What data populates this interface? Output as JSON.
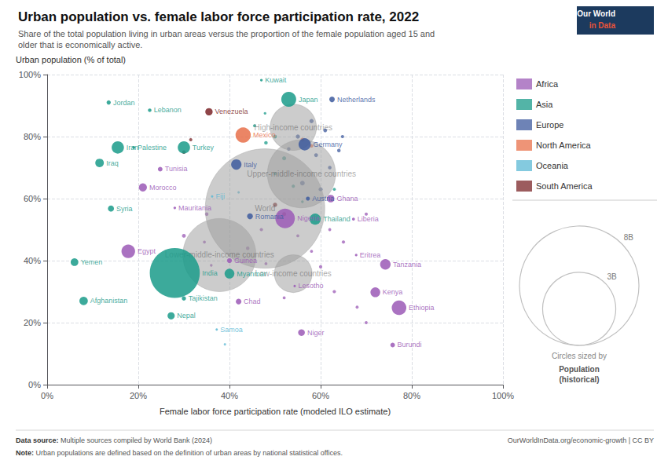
{
  "chart_data": {
    "type": "scatter",
    "title": "Urban population vs. female labor force participation rate, 2022",
    "subtitle": "Share of the total population living in urban areas versus the proportion of the female population aged 15 and\nolder that is economically active.",
    "x_label": "Female labor force participation rate (modeled ILO estimate)",
    "y_label": "Urban population (% of total)",
    "xlim": [
      0,
      1.0
    ],
    "ylim": [
      0,
      1.0
    ],
    "xticks": [
      {
        "value": 0,
        "label": "0%"
      },
      {
        "value": 0.2,
        "label": "20%"
      },
      {
        "value": 0.4,
        "label": "40%"
      },
      {
        "value": 0.6,
        "label": "60%"
      },
      {
        "value": 0.8,
        "label": "80%"
      },
      {
        "value": 1.0,
        "label": "100%"
      }
    ],
    "yticks": [
      {
        "value": 0,
        "label": "0%"
      },
      {
        "value": 0.2,
        "label": "20%"
      },
      {
        "value": 0.4,
        "label": "40%"
      },
      {
        "value": 0.6,
        "label": "60%"
      },
      {
        "value": 0.8,
        "label": "80%"
      },
      {
        "value": 1.0,
        "label": "100%"
      }
    ],
    "grid": true,
    "legend": "right",
    "series": [
      {
        "name": "Africa",
        "color": "#9B59B6"
      },
      {
        "name": "Asia",
        "color": "#1A9B8A"
      },
      {
        "name": "Europe",
        "color": "#3D5A9E"
      },
      {
        "name": "North America",
        "color": "#E8704A"
      },
      {
        "name": "Oceania",
        "color": "#5BB8D4"
      },
      {
        "name": "South America",
        "color": "#7B2528"
      }
    ],
    "points": [
      {
        "name": "Jordan",
        "x": 0.135,
        "y": 0.91,
        "region": "Asia",
        "pop": 10
      },
      {
        "name": "Lebanon",
        "x": 0.225,
        "y": 0.885,
        "region": "Asia",
        "pop": 7
      },
      {
        "name": "Venezuela",
        "x": 0.355,
        "y": 0.88,
        "region": "South America",
        "pop": 30
      },
      {
        "name": "Kuwait",
        "x": 0.47,
        "y": 0.982,
        "region": "Asia",
        "pop": 4
      },
      {
        "name": "Japan",
        "x": 0.53,
        "y": 0.92,
        "region": "Asia",
        "pop": 125
      },
      {
        "name": "Netherlands",
        "x": 0.625,
        "y": 0.92,
        "region": "Europe",
        "pop": 17
      },
      {
        "name": "Iran",
        "x": 0.155,
        "y": 0.765,
        "region": "Asia",
        "pop": 85
      },
      {
        "name": "Palestine",
        "x": 0.19,
        "y": 0.765,
        "region": "Asia",
        "pop": 5
      },
      {
        "name": "Turkey",
        "x": 0.3,
        "y": 0.765,
        "region": "Asia",
        "pop": 85
      },
      {
        "name": "Mexico",
        "x": 0.43,
        "y": 0.805,
        "region": "North America",
        "pop": 130
      },
      {
        "name": "Germany",
        "x": 0.565,
        "y": 0.775,
        "region": "Europe",
        "pop": 84
      },
      {
        "name": "Iraq",
        "x": 0.115,
        "y": 0.715,
        "region": "Asia",
        "pop": 41
      },
      {
        "name": "Tunisia",
        "x": 0.248,
        "y": 0.695,
        "region": "Africa",
        "pop": 12
      },
      {
        "name": "Italy",
        "x": 0.415,
        "y": 0.71,
        "region": "Europe",
        "pop": 60
      },
      {
        "name": "Morocco",
        "x": 0.21,
        "y": 0.636,
        "region": "Africa",
        "pop": 37
      },
      {
        "name": "Mauritania",
        "x": 0.28,
        "y": 0.57,
        "region": "Africa",
        "pop": 4
      },
      {
        "name": "Fiji",
        "x": 0.362,
        "y": 0.607,
        "region": "Oceania",
        "pop": 0.9
      },
      {
        "name": "Austria",
        "x": 0.572,
        "y": 0.6,
        "region": "Europe",
        "pop": 9
      },
      {
        "name": "Ghana",
        "x": 0.622,
        "y": 0.6,
        "region": "Africa",
        "pop": 32
      },
      {
        "name": "Syria",
        "x": 0.14,
        "y": 0.568,
        "region": "Asia",
        "pop": 21
      },
      {
        "name": "Romania",
        "x": 0.445,
        "y": 0.543,
        "region": "Europe",
        "pop": 19
      },
      {
        "name": "Nigeria",
        "x": 0.522,
        "y": 0.536,
        "region": "Africa",
        "pop": 213
      },
      {
        "name": "Thailand",
        "x": 0.588,
        "y": 0.534,
        "region": "Asia",
        "pop": 70
      },
      {
        "name": "Liberia",
        "x": 0.672,
        "y": 0.534,
        "region": "Africa",
        "pop": 5
      },
      {
        "name": "Egypt",
        "x": 0.178,
        "y": 0.43,
        "region": "Africa",
        "pop": 104
      },
      {
        "name": "Yemen",
        "x": 0.06,
        "y": 0.395,
        "region": "Asia",
        "pop": 33
      },
      {
        "name": "India",
        "x": 0.28,
        "y": 0.36,
        "region": "Asia",
        "pop": 1400
      },
      {
        "name": "Guinea",
        "x": 0.4,
        "y": 0.4,
        "region": "Africa",
        "pop": 13
      },
      {
        "name": "Eritrea",
        "x": 0.678,
        "y": 0.418,
        "region": "Africa",
        "pop": 3.5
      },
      {
        "name": "Tanzania",
        "x": 0.742,
        "y": 0.388,
        "region": "Africa",
        "pop": 62
      },
      {
        "name": "Afghanistan",
        "x": 0.08,
        "y": 0.27,
        "region": "Asia",
        "pop": 40
      },
      {
        "name": "Tajikistan",
        "x": 0.3,
        "y": 0.278,
        "region": "Asia",
        "pop": 10
      },
      {
        "name": "Myanmar",
        "x": 0.4,
        "y": 0.358,
        "region": "Asia",
        "pop": 54
      },
      {
        "name": "Lesotho",
        "x": 0.543,
        "y": 0.318,
        "region": "Africa",
        "pop": 2.2
      },
      {
        "name": "Kenya",
        "x": 0.72,
        "y": 0.298,
        "region": "Africa",
        "pop": 54
      },
      {
        "name": "Nepal",
        "x": 0.272,
        "y": 0.222,
        "region": "Asia",
        "pop": 29
      },
      {
        "name": "Chad",
        "x": 0.42,
        "y": 0.268,
        "region": "Africa",
        "pop": 17
      },
      {
        "name": "Ethiopia",
        "x": 0.772,
        "y": 0.248,
        "region": "Africa",
        "pop": 120
      },
      {
        "name": "Samoa",
        "x": 0.372,
        "y": 0.178,
        "region": "Oceania",
        "pop": 0.2
      },
      {
        "name": "Niger",
        "x": 0.558,
        "y": 0.168,
        "region": "Africa",
        "pop": 25
      },
      {
        "name": "Burundi",
        "x": 0.758,
        "y": 0.128,
        "region": "Africa",
        "pop": 12
      }
    ],
    "aggregate_color": "#9A9A9A",
    "aggregates": [
      {
        "name": "High-income countries",
        "x": 0.54,
        "y": 0.83,
        "pop": 1200
      },
      {
        "name": "Upper-middle-income countries",
        "x": 0.558,
        "y": 0.68,
        "pop": 2600
      },
      {
        "name": "World",
        "x": 0.478,
        "y": 0.568,
        "pop": 8000
      },
      {
        "name": "Lower-middle-income countries",
        "x": 0.378,
        "y": 0.418,
        "pop": 3000
      },
      {
        "name": "Low-income countries",
        "x": 0.54,
        "y": 0.358,
        "pop": 800
      }
    ],
    "extra_points": [
      {
        "region": "Europe",
        "x": 0.58,
        "y": 0.85,
        "pop": 10
      },
      {
        "region": "Europe",
        "x": 0.61,
        "y": 0.82,
        "pop": 8
      },
      {
        "region": "Europe",
        "x": 0.55,
        "y": 0.8,
        "pop": 10
      },
      {
        "region": "Europe",
        "x": 0.53,
        "y": 0.76,
        "pop": 7
      },
      {
        "region": "Europe",
        "x": 0.59,
        "y": 0.74,
        "pop": 8
      },
      {
        "region": "Europe",
        "x": 0.62,
        "y": 0.7,
        "pop": 7
      },
      {
        "region": "Europe",
        "x": 0.56,
        "y": 0.65,
        "pop": 12
      },
      {
        "region": "Europe",
        "x": 0.6,
        "y": 0.63,
        "pop": 9
      },
      {
        "region": "Europe",
        "x": 0.64,
        "y": 0.755,
        "pop": 7
      },
      {
        "region": "Europe",
        "x": 0.648,
        "y": 0.8,
        "pop": 6
      },
      {
        "region": "Asia",
        "x": 0.5,
        "y": 0.8,
        "pop": 8
      },
      {
        "region": "Asia",
        "x": 0.48,
        "y": 0.78,
        "pop": 7
      },
      {
        "region": "Asia",
        "x": 0.52,
        "y": 0.73,
        "pop": 9
      },
      {
        "region": "Asia",
        "x": 0.5,
        "y": 0.68,
        "pop": 5
      },
      {
        "region": "Asia",
        "x": 0.54,
        "y": 0.64,
        "pop": 6
      },
      {
        "region": "Asia",
        "x": 0.56,
        "y": 0.59,
        "pop": 4
      },
      {
        "region": "Asia",
        "x": 0.63,
        "y": 0.63,
        "pop": 5
      },
      {
        "region": "Asia",
        "x": 0.455,
        "y": 0.835,
        "pop": 5
      },
      {
        "region": "Asia",
        "x": 0.478,
        "y": 0.875,
        "pop": 4
      },
      {
        "region": "Africa",
        "x": 0.62,
        "y": 0.5,
        "pop": 5
      },
      {
        "region": "Africa",
        "x": 0.65,
        "y": 0.46,
        "pop": 6
      },
      {
        "region": "Africa",
        "x": 0.58,
        "y": 0.43,
        "pop": 5
      },
      {
        "region": "Africa",
        "x": 0.6,
        "y": 0.38,
        "pop": 6
      },
      {
        "region": "Africa",
        "x": 0.55,
        "y": 0.48,
        "pop": 5
      },
      {
        "region": "Africa",
        "x": 0.7,
        "y": 0.55,
        "pop": 6
      },
      {
        "region": "Africa",
        "x": 0.3,
        "y": 0.48,
        "pop": 8
      },
      {
        "region": "Africa",
        "x": 0.35,
        "y": 0.55,
        "pop": 7
      },
      {
        "region": "Africa",
        "x": 0.47,
        "y": 0.5,
        "pop": 6
      },
      {
        "region": "Africa",
        "x": 0.44,
        "y": 0.44,
        "pop": 7
      },
      {
        "region": "Africa",
        "x": 0.48,
        "y": 0.39,
        "pop": 5
      },
      {
        "region": "Africa",
        "x": 0.52,
        "y": 0.28,
        "pop": 5
      },
      {
        "region": "Africa",
        "x": 0.63,
        "y": 0.3,
        "pop": 6
      },
      {
        "region": "Africa",
        "x": 0.68,
        "y": 0.25,
        "pop": 5
      },
      {
        "region": "Africa",
        "x": 0.7,
        "y": 0.2,
        "pop": 5
      },
      {
        "region": "Africa",
        "x": 0.345,
        "y": 0.46,
        "pop": 5
      },
      {
        "region": "Africa",
        "x": 0.36,
        "y": 0.385,
        "pop": 4
      },
      {
        "region": "North America",
        "x": 0.56,
        "y": 0.79,
        "pop": 8
      },
      {
        "region": "North America",
        "x": 0.58,
        "y": 0.77,
        "pop": 7
      },
      {
        "region": "South America",
        "x": 0.5,
        "y": 0.58,
        "pop": 10
      },
      {
        "region": "South America",
        "x": 0.52,
        "y": 0.55,
        "pop": 9
      },
      {
        "region": "South America",
        "x": 0.3,
        "y": 0.75,
        "pop": 7
      },
      {
        "region": "South America",
        "x": 0.315,
        "y": 0.79,
        "pop": 6
      },
      {
        "region": "Oceania",
        "x": 0.42,
        "y": 0.62,
        "pop": 3
      },
      {
        "region": "Oceania",
        "x": 0.39,
        "y": 0.13,
        "pop": 2
      }
    ],
    "size_legend": {
      "title": "Circles sized by",
      "name": "Population\n(historical)",
      "sizes": [
        {
          "value": 8000,
          "label": "8B"
        },
        {
          "value": 3000,
          "label": "3B"
        }
      ]
    },
    "logo": [
      "Our World",
      "in Data"
    ],
    "datasource_bold": "Data source:",
    "datasource_rest": " Multiple sources compiled by World Bank (2024)",
    "datasource_right": "OurWorldInData.org/economic-growth | CC BY",
    "note_bold": "Note:",
    "note_rest": " Urban populations are defined based on the definition of urban areas by national statistical offices."
  }
}
